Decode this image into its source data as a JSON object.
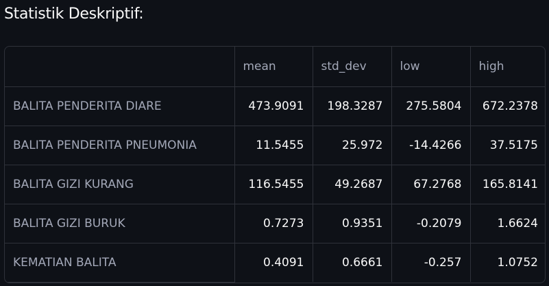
{
  "heading": "Statistik Deskriptif:",
  "table": {
    "columns": [
      "",
      "mean",
      "std_dev",
      "low",
      "high"
    ],
    "rows": [
      {
        "label": "BALITA PENDERITA DIARE",
        "mean": "473.9091",
        "std_dev": "198.3287",
        "low": "275.5804",
        "high": "672.2378"
      },
      {
        "label": "BALITA PENDERITA PNEUMONIA",
        "mean": "11.5455",
        "std_dev": "25.972",
        "low": "-14.4266",
        "high": "37.5175"
      },
      {
        "label": "BALITA GIZI KURANG",
        "mean": "116.5455",
        "std_dev": "49.2687",
        "low": "67.2768",
        "high": "165.8141"
      },
      {
        "label": "BALITA GIZI BURUK",
        "mean": "0.7273",
        "std_dev": "0.9351",
        "low": "-0.2079",
        "high": "1.6624"
      },
      {
        "label": "KEMATIAN BALITA",
        "mean": "0.4091",
        "std_dev": "0.6661",
        "low": "-0.257",
        "high": "1.0752"
      }
    ]
  }
}
